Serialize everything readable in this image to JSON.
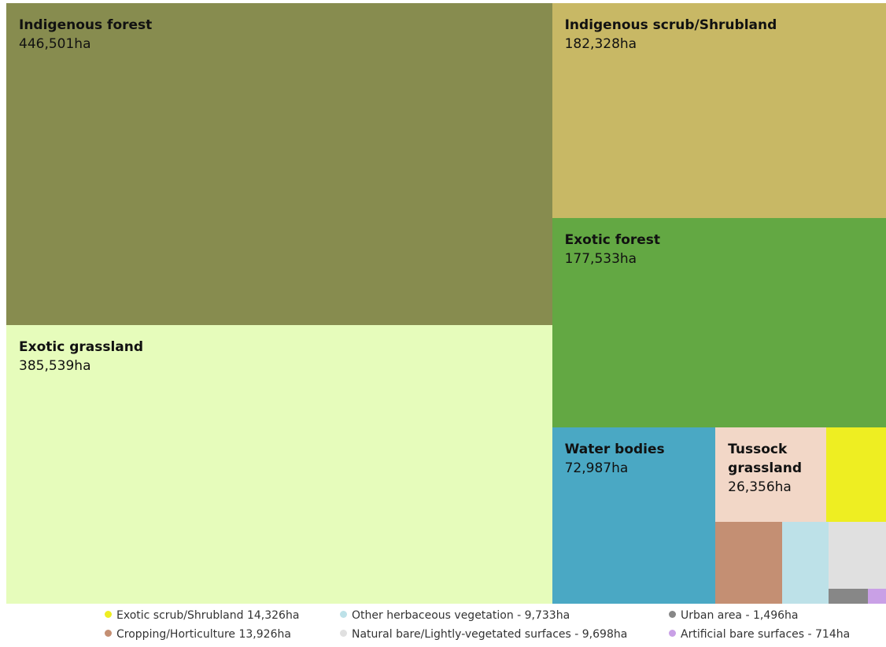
{
  "chart_data": {
    "type": "treemap",
    "categories": [
      "Indigenous forest",
      "Exotic grassland",
      "Indigenous scrub/Shrubland",
      "Exotic forest",
      "Water bodies",
      "Tussock grassland",
      "Exotic scrub/Shrubland",
      "Cropping/Horticulture",
      "Other herbaceous vegetation",
      "Natural bare/Lightly-vegetated surfaces",
      "Urban area",
      "Artificial bare surfaces"
    ],
    "values": [
      446501,
      385539,
      182328,
      177533,
      72987,
      26356,
      14326,
      13926,
      9733,
      9698,
      1496,
      714
    ],
    "value_labels": [
      "446,501ha",
      "385,539ha",
      "182,328ha",
      "177,533ha",
      "72,987ha",
      "26,356ha",
      null,
      null,
      null,
      null,
      null,
      null
    ],
    "legend_labels": [
      null,
      null,
      null,
      null,
      null,
      null,
      "Exotic scrub/Shrubland 14,326ha",
      "Cropping/Horticulture 13,926ha",
      "Other herbaceous vegetation - 9,733ha",
      "Natural bare/Lightly-vegetated surfaces - 9,698ha",
      "Urban area - 1,496ha",
      "Artificial bare surfaces - 714ha"
    ],
    "colors": [
      "#878c4f",
      "#e6fcbb",
      "#c8b865",
      "#63a843",
      "#4aa8c4",
      "#f2d7c7",
      "#eeee22",
      "#c48f73",
      "#bde1e8",
      "#e0e0e0",
      "#878787",
      "#c9a0e6"
    ]
  }
}
